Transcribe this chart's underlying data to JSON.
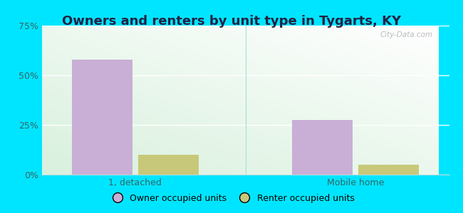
{
  "title": "Owners and renters by unit type in Tygarts, KY",
  "categories": [
    "1, detached",
    "Mobile home"
  ],
  "owner_values": [
    58.0,
    27.5
  ],
  "renter_values": [
    10.0,
    5.0
  ],
  "owner_color": "#c9aed6",
  "renter_color": "#c8c87a",
  "ylim": [
    0,
    75
  ],
  "yticks": [
    0,
    25,
    50,
    75
  ],
  "yticklabels": [
    "0%",
    "25%",
    "50%",
    "75%"
  ],
  "title_fontsize": 13,
  "background_outer": "#00e5ff",
  "watermark": "City-Data.com",
  "legend_labels": [
    "Owner occupied units",
    "Renter occupied units"
  ],
  "tick_color": "#336666",
  "title_color": "#222244"
}
